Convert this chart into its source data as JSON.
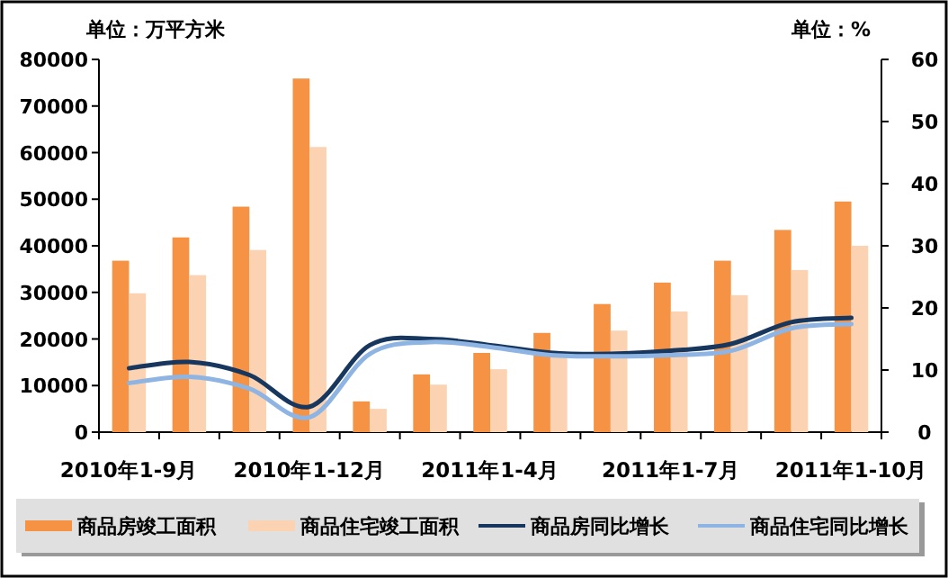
{
  "chart_data": {
    "type": "bar",
    "ylabel": "单位：万平方米",
    "y2label": "单位：%",
    "categories": [
      "2010年1-9月",
      null,
      null,
      "2010年1-12月",
      null,
      null,
      "2011年1-4月",
      null,
      null,
      "2011年1-7月",
      null,
      null,
      "2011年1-10月"
    ],
    "series": [
      {
        "name": "商品房竣工面积",
        "color": "#f59243",
        "values": [
          36800,
          41800,
          48400,
          75900,
          6600,
          12400,
          17000,
          21300,
          27500,
          32100,
          36800,
          43400,
          49500
        ]
      },
      {
        "name": "商品住宅竣工面积",
        "color": "#fbd3b2",
        "values": [
          29800,
          33700,
          39100,
          61200,
          5000,
          10200,
          13500,
          16100,
          21800,
          25900,
          29400,
          34800,
          40000
        ]
      },
      {
        "name": "商品房同比增长",
        "type": "line",
        "axis": "y2",
        "color": "#17375e",
        "values": [
          10.3,
          11.3,
          9.2,
          4.1,
          14.0,
          15.0,
          14.0,
          12.8,
          12.6,
          13.1,
          14.2,
          17.7,
          18.4
        ]
      },
      {
        "name": "商品住宅同比增长",
        "type": "line",
        "axis": "y2",
        "color": "#8db4e2",
        "values": [
          7.9,
          8.9,
          7.0,
          2.4,
          12.6,
          14.5,
          13.7,
          12.4,
          12.2,
          12.4,
          13.1,
          16.7,
          17.4
        ]
      }
    ],
    "ylim": [
      0,
      80000
    ],
    "yticks": [
      0,
      10000,
      20000,
      30000,
      40000,
      50000,
      60000,
      70000,
      80000
    ],
    "y2lim": [
      0,
      60
    ],
    "y2ticks": [
      0,
      10,
      20,
      30,
      40,
      50,
      60
    ],
    "grid": false,
    "legend": "bottom"
  }
}
